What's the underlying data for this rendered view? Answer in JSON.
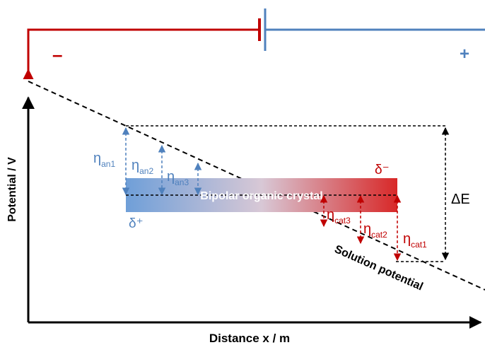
{
  "axes": {
    "y_label": "Potential / V",
    "x_label": "Distance x / m"
  },
  "source": {
    "minus_sign": "–",
    "plus_sign": "+"
  },
  "crystal": {
    "label": "Bipolar organic crystal",
    "left_charge": "δ⁺",
    "right_charge": "δ⁻"
  },
  "overpotentials": {
    "anodic": [
      {
        "symbol": "η",
        "sub": "an1"
      },
      {
        "symbol": "η",
        "sub": "an2"
      },
      {
        "symbol": "η",
        "sub": "an3"
      }
    ],
    "cathodic": [
      {
        "symbol": "η",
        "sub": "cat1"
      },
      {
        "symbol": "η",
        "sub": "cat2"
      },
      {
        "symbol": "η",
        "sub": "cat3"
      }
    ]
  },
  "delta_e_label": "ΔE",
  "solution_potential_label": "Solution potential",
  "colors": {
    "anode_blue": "#4f81bd",
    "cathode_red": "#c00000",
    "line_black": "#000000"
  }
}
